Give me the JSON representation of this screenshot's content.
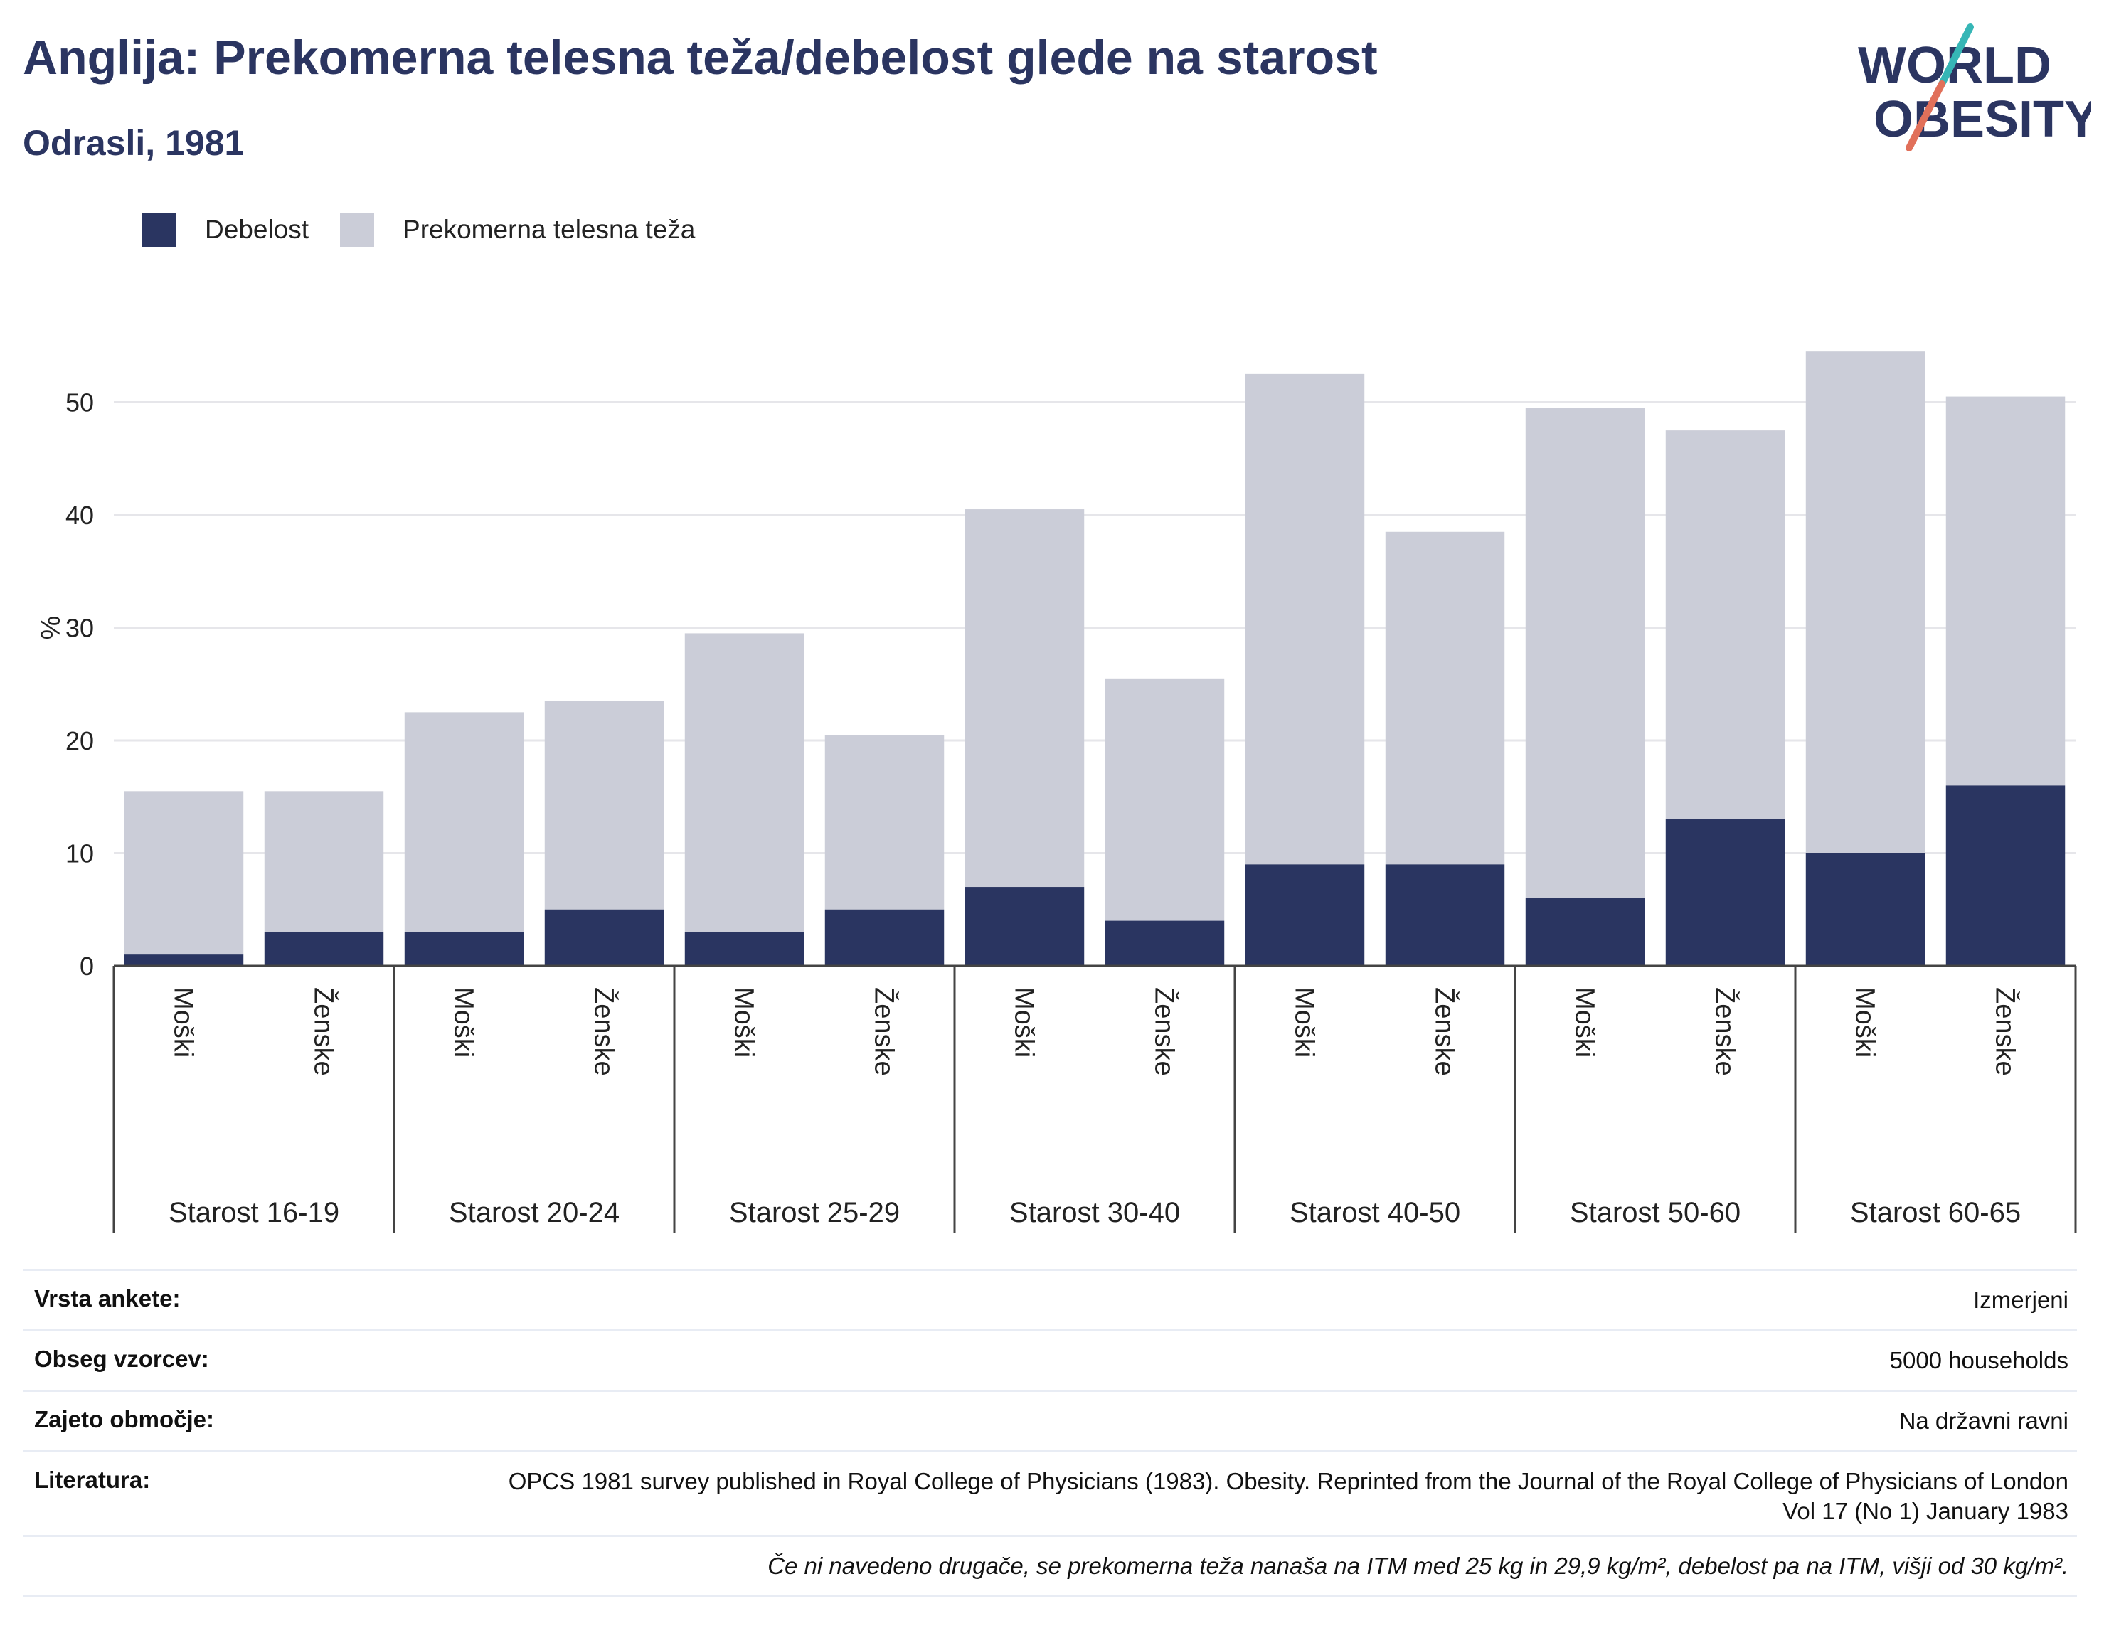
{
  "header": {
    "title": "Anglija: Prekomerna telesna teža/debelost glede na starost",
    "subtitle": "Odrasli, 1981"
  },
  "logo": {
    "line1": "WORLD",
    "line2": "OBESITY"
  },
  "legend": [
    {
      "label": "Debelost",
      "color": "#2a3561"
    },
    {
      "label": "Prekomerna telesna teža",
      "color": "#cbcdd8"
    }
  ],
  "chart_data": {
    "type": "bar",
    "stacked": true,
    "ylabel": "%",
    "ylim": [
      0,
      57
    ],
    "yticks": [
      0,
      10,
      20,
      30,
      40,
      50
    ],
    "grid": true,
    "legend_position": "top-left",
    "groups": [
      "Starost 16-19",
      "Starost 20-24",
      "Starost 25-29",
      "Starost 30-40",
      "Starost 40-50",
      "Starost 50-60",
      "Starost 60-65"
    ],
    "subcategories": [
      "Moški",
      "Ženske"
    ],
    "series": [
      {
        "name": "Debelost",
        "color": "#2a3561",
        "values": [
          1,
          3,
          3,
          5,
          3,
          5,
          7,
          4,
          9,
          9,
          6,
          13,
          10,
          16
        ]
      },
      {
        "name": "Prekomerna telesna teža",
        "color": "#cbcdd8",
        "values": [
          14.5,
          12.5,
          19.5,
          18.5,
          26.5,
          15.5,
          33.5,
          21.5,
          43.5,
          29.5,
          43.5,
          34.5,
          44.5,
          34.5
        ]
      }
    ]
  },
  "survey": {
    "rows": [
      {
        "label": "Vrsta ankete:",
        "value": "Izmerjeni"
      },
      {
        "label": "Obseg vzorcev:",
        "value": "5000 households"
      },
      {
        "label": "Zajeto območje:",
        "value": "Na državni ravni"
      },
      {
        "label": "Literatura:",
        "value": "OPCS 1981 survey published in Royal College of Physicians (1983). Obesity. Reprinted from the Journal of the Royal College of Physicians of London Vol 17 (No 1) January 1983"
      }
    ],
    "note": "Če ni navedeno drugače, se prekomerna teža nanaša na ITM med 25 kg in 29,9 kg/m², debelost pa na ITM, višji od 30 kg/m²."
  }
}
